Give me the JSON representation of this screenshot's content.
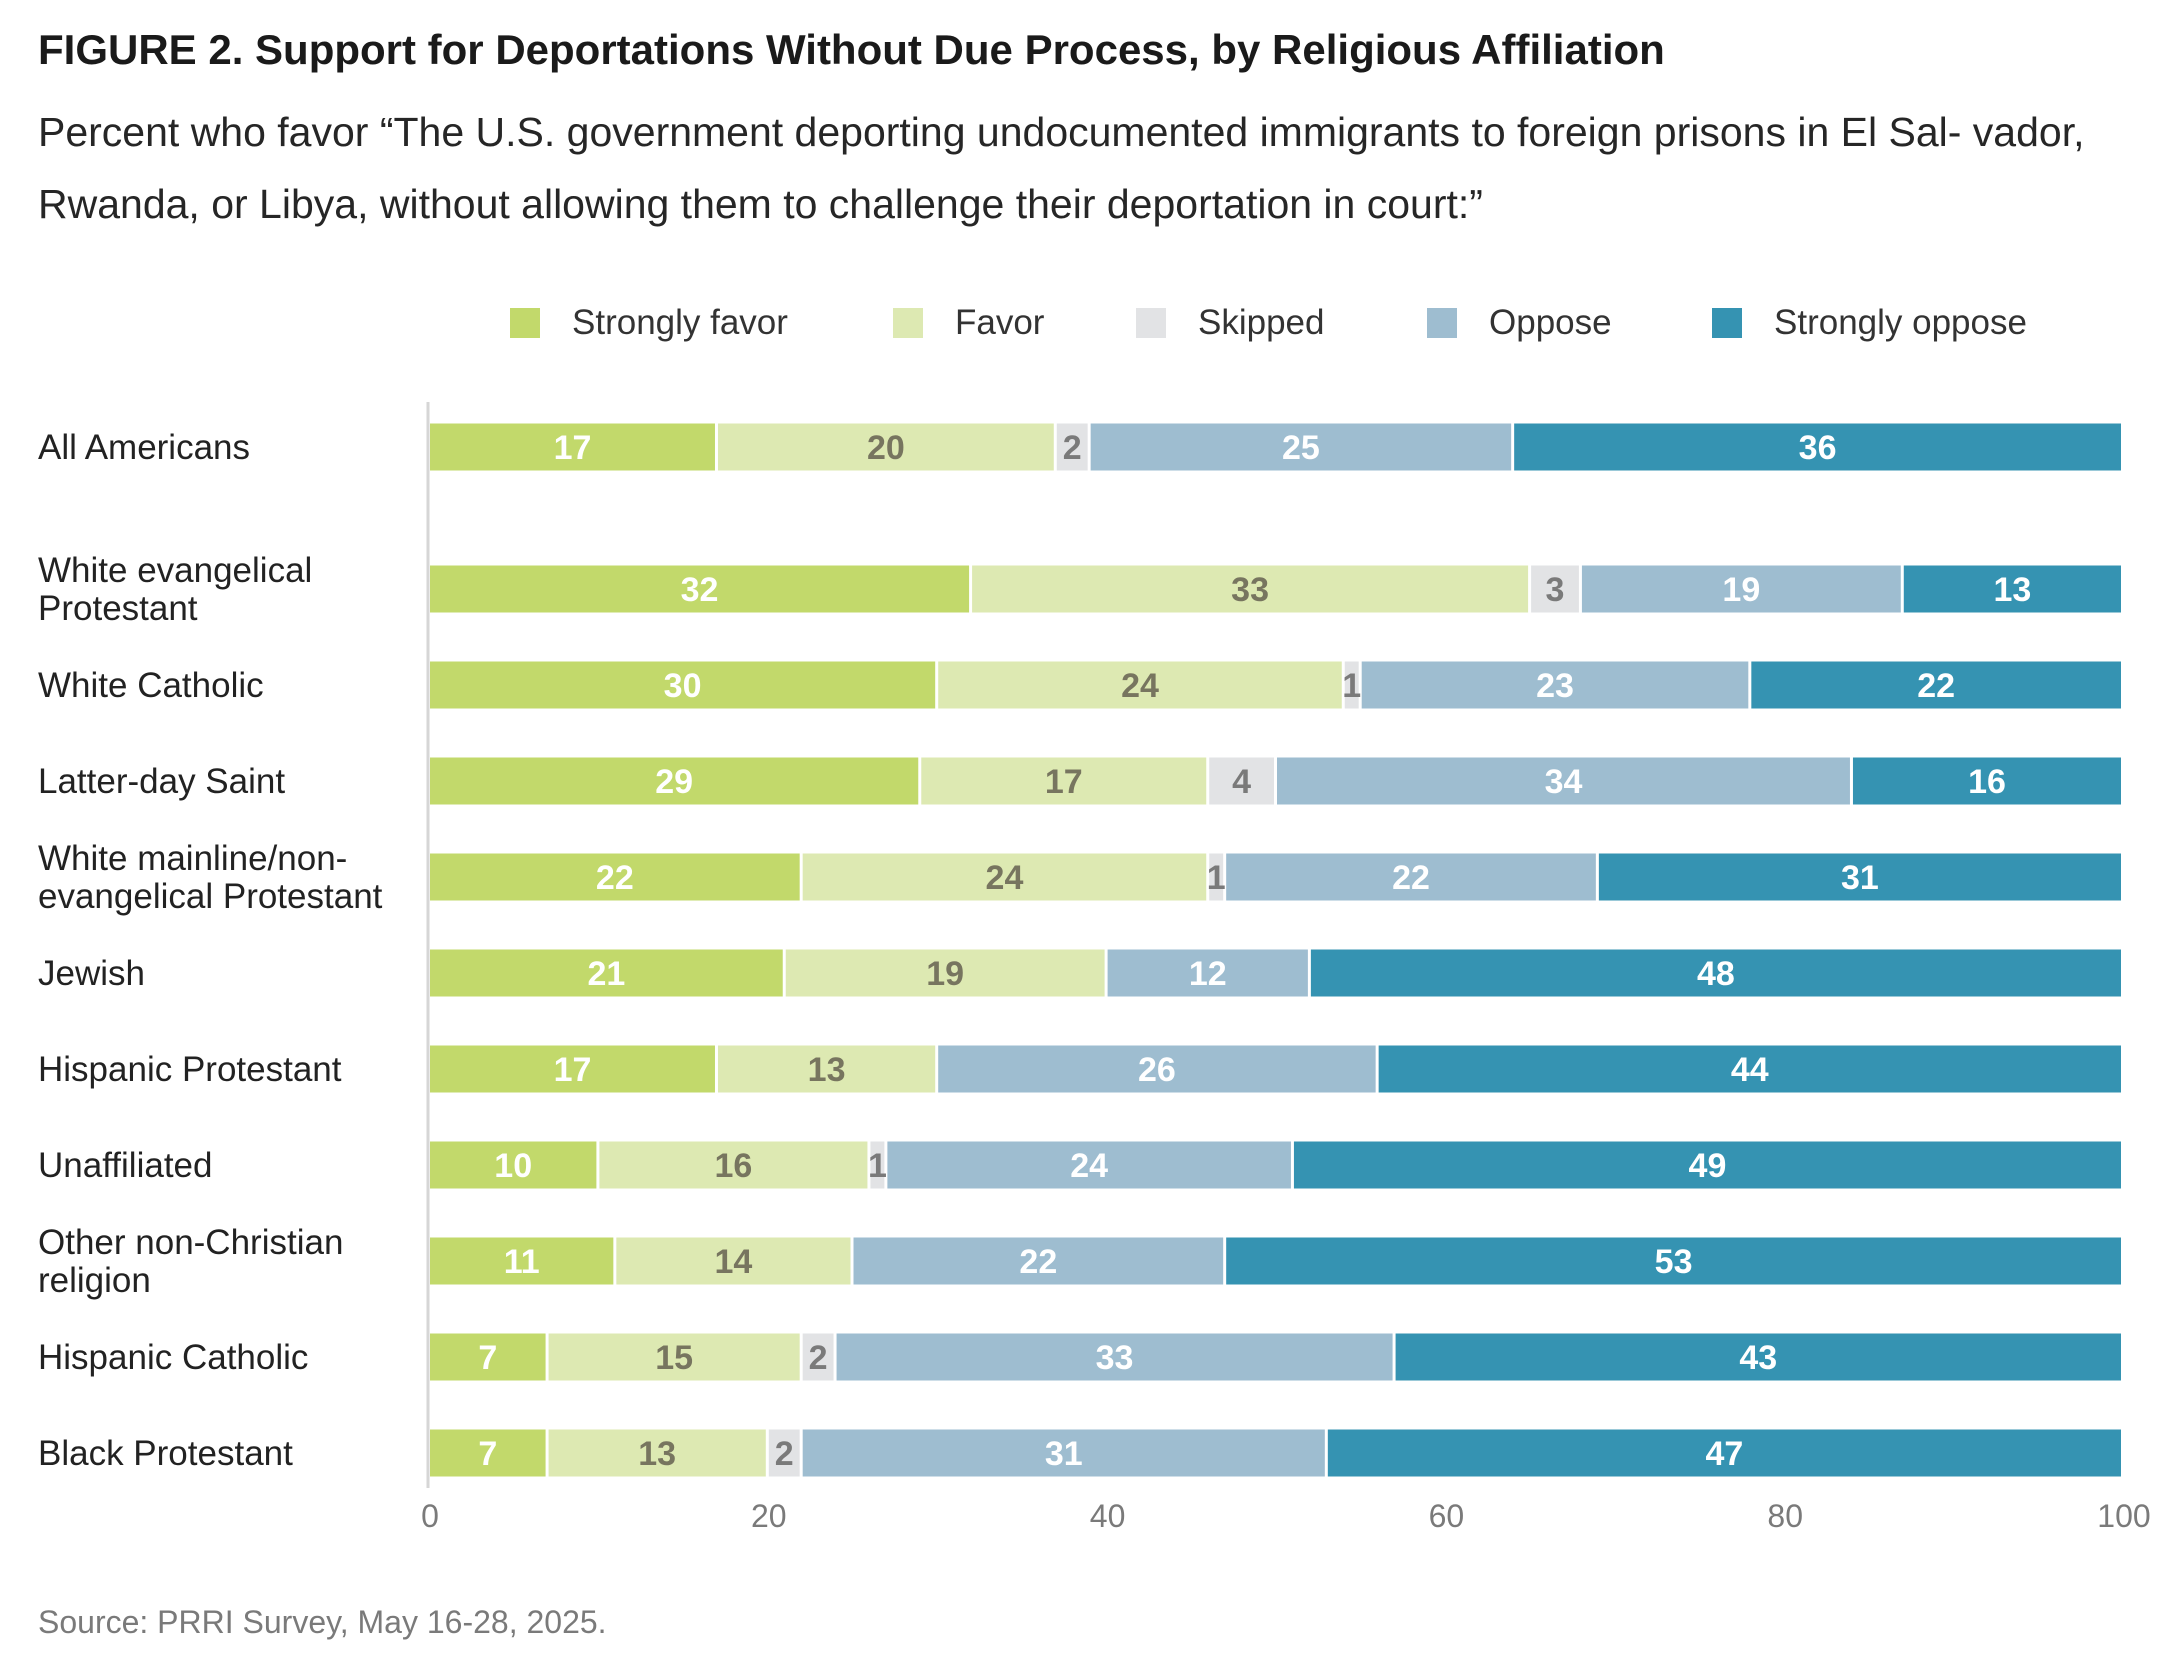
{
  "title": "FIGURE 2.  Support for Deportations Without Due Process, by Religious Affiliation",
  "subtitle": "Percent who favor “The U.S. government deporting undocumented immigrants to foreign prisons in El Sal- vador, Rwanda, or Libya, without allowing them to challenge their deportation in court:”",
  "source": "Source: PRRI Survey, May 16-28, 2025.",
  "chart_data": {
    "type": "bar",
    "orientation": "horizontal",
    "stacked": true,
    "title": "FIGURE 2.  Support for Deportations Without Due Process, by Religious Affiliation",
    "xlim": [
      0,
      100
    ],
    "xticks": [
      "0",
      "20",
      "40",
      "60",
      "80",
      "100"
    ],
    "grid": false,
    "legend_position": "top-right",
    "categories": [
      [
        "All Americans"
      ],
      [
        "White evangelical",
        "Protestant"
      ],
      [
        "White Catholic"
      ],
      [
        "Latter-day Saint"
      ],
      [
        "White mainline/non-",
        "evangelical Protestant"
      ],
      [
        "Jewish"
      ],
      [
        "Hispanic Protestant"
      ],
      [
        "Unaffiliated"
      ],
      [
        "Other non-Christian",
        "religion"
      ],
      [
        "Hispanic Catholic"
      ],
      [
        "Black Protestant"
      ]
    ],
    "series": [
      {
        "name": "Strongly favor",
        "color": "#c2d96b",
        "label_color": "#ffffff",
        "values": [
          17,
          32,
          30,
          29,
          22,
          21,
          17,
          10,
          11,
          7,
          7
        ]
      },
      {
        "name": "Favor",
        "color": "#dde9b2",
        "label_color": "#77755f",
        "values": [
          20,
          33,
          24,
          17,
          24,
          19,
          13,
          16,
          14,
          15,
          13
        ]
      },
      {
        "name": "Skipped",
        "color": "#e2e3e5",
        "label_color": "#7a7a7a",
        "values": [
          2,
          3,
          1,
          4,
          1,
          0,
          0,
          1,
          0,
          2,
          2
        ]
      },
      {
        "name": "Oppose",
        "color": "#9ebdd0",
        "label_color": "#ffffff",
        "values": [
          25,
          19,
          23,
          34,
          22,
          12,
          26,
          24,
          22,
          33,
          31
        ]
      },
      {
        "name": "Strongly oppose",
        "color": "#3593b2",
        "label_color": "#ffffff",
        "values": [
          36,
          13,
          22,
          16,
          31,
          48,
          44,
          49,
          53,
          43,
          47
        ]
      }
    ]
  }
}
